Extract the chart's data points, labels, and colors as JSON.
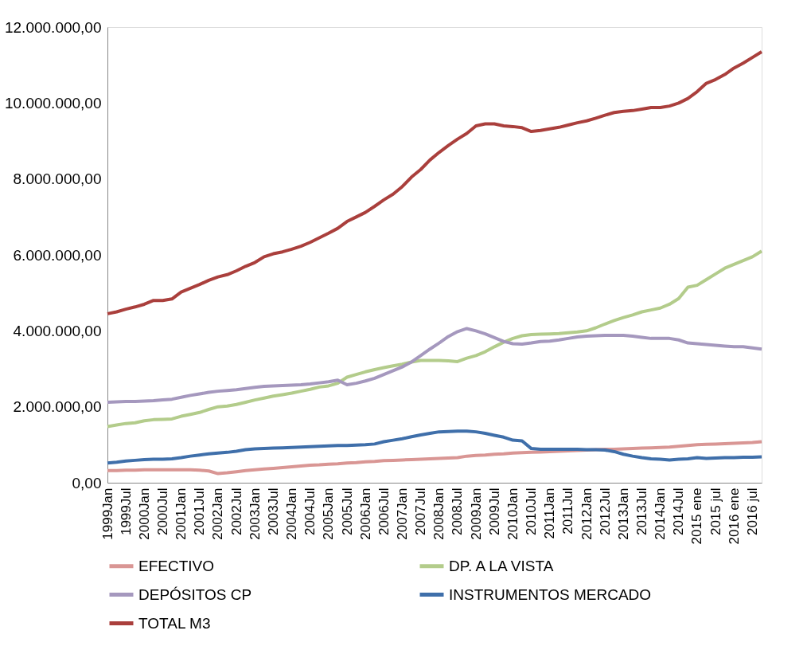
{
  "chart_data": {
    "type": "line",
    "categories": [
      "1999Jan",
      null,
      "1999Jul",
      null,
      "2000Jan",
      null,
      "2000Jul",
      null,
      "2001Jan",
      null,
      "2001Jul",
      null,
      "2002Jan",
      null,
      "2002Jul",
      null,
      "2003Jan",
      null,
      "2003Jul",
      null,
      "2004Jan",
      null,
      "2004Jul",
      null,
      "2005Jan",
      null,
      "2005Jul",
      null,
      "2006Jan",
      null,
      "2006Jul",
      null,
      "2007Jan",
      null,
      "2007Jul",
      null,
      "2008Jan",
      null,
      "2008Jul",
      null,
      "2009Jan",
      null,
      "2009Jul",
      null,
      "2010Jan",
      null,
      "2010Jul",
      null,
      "2011Jan",
      null,
      "2011Jul",
      null,
      "2012Jan",
      null,
      "2012Jul",
      null,
      "2013Jan",
      null,
      "2013Jul",
      null,
      "2014Jan",
      null,
      "2014Jul",
      null,
      "2015 ene",
      null,
      "2015 jul",
      null,
      "2016 ene",
      null,
      "2016 jul",
      null
    ],
    "series": [
      {
        "name": "EFECTIVO",
        "color": "#d99694",
        "values": [
          320000,
          320000,
          330000,
          330000,
          340000,
          340000,
          340000,
          340000,
          340000,
          340000,
          330000,
          310000,
          240000,
          260000,
          290000,
          320000,
          340000,
          360000,
          380000,
          400000,
          420000,
          440000,
          460000,
          470000,
          490000,
          500000,
          520000,
          530000,
          550000,
          560000,
          580000,
          590000,
          600000,
          610000,
          620000,
          630000,
          640000,
          650000,
          660000,
          700000,
          720000,
          730000,
          750000,
          760000,
          780000,
          790000,
          800000,
          810000,
          820000,
          830000,
          840000,
          850000,
          860000,
          870000,
          880000,
          880000,
          890000,
          900000,
          910000,
          920000,
          930000,
          940000,
          960000,
          980000,
          1000000,
          1010000,
          1020000,
          1030000,
          1040000,
          1050000,
          1060000,
          1080000
        ]
      },
      {
        "name": "DP. A LA VISTA",
        "color": "#b3cc8b",
        "values": [
          1480000,
          1520000,
          1560000,
          1580000,
          1630000,
          1660000,
          1670000,
          1680000,
          1750000,
          1800000,
          1850000,
          1930000,
          2000000,
          2020000,
          2060000,
          2120000,
          2180000,
          2230000,
          2280000,
          2320000,
          2360000,
          2410000,
          2460000,
          2520000,
          2550000,
          2620000,
          2780000,
          2850000,
          2920000,
          2980000,
          3030000,
          3080000,
          3120000,
          3180000,
          3220000,
          3220000,
          3220000,
          3210000,
          3190000,
          3280000,
          3350000,
          3450000,
          3580000,
          3700000,
          3800000,
          3870000,
          3900000,
          3910000,
          3920000,
          3930000,
          3950000,
          3970000,
          4000000,
          4080000,
          4180000,
          4270000,
          4350000,
          4420000,
          4500000,
          4550000,
          4600000,
          4700000,
          4850000,
          5150000,
          5200000,
          5350000,
          5500000,
          5650000,
          5750000,
          5850000,
          5950000,
          6100000
        ]
      },
      {
        "name": "DEPÓSITOS CP",
        "color": "#a598be",
        "values": [
          2120000,
          2130000,
          2140000,
          2140000,
          2150000,
          2160000,
          2180000,
          2200000,
          2250000,
          2300000,
          2340000,
          2380000,
          2410000,
          2430000,
          2450000,
          2480000,
          2510000,
          2540000,
          2550000,
          2560000,
          2570000,
          2580000,
          2600000,
          2630000,
          2660000,
          2700000,
          2580000,
          2620000,
          2680000,
          2750000,
          2850000,
          2950000,
          3050000,
          3180000,
          3350000,
          3520000,
          3680000,
          3850000,
          3980000,
          4060000,
          4000000,
          3920000,
          3820000,
          3720000,
          3660000,
          3650000,
          3680000,
          3720000,
          3730000,
          3760000,
          3800000,
          3840000,
          3860000,
          3870000,
          3880000,
          3880000,
          3880000,
          3860000,
          3830000,
          3800000,
          3800000,
          3800000,
          3760000,
          3680000,
          3660000,
          3640000,
          3620000,
          3600000,
          3580000,
          3580000,
          3550000,
          3520000
        ]
      },
      {
        "name": "INSTRUMENTOS MERCADO",
        "color": "#3f6faa",
        "values": [
          520000,
          540000,
          570000,
          590000,
          610000,
          620000,
          620000,
          630000,
          660000,
          700000,
          730000,
          760000,
          780000,
          800000,
          830000,
          870000,
          890000,
          900000,
          910000,
          920000,
          930000,
          940000,
          950000,
          960000,
          970000,
          980000,
          980000,
          990000,
          1000000,
          1020000,
          1080000,
          1120000,
          1160000,
          1210000,
          1260000,
          1300000,
          1340000,
          1350000,
          1360000,
          1360000,
          1340000,
          1300000,
          1250000,
          1200000,
          1120000,
          1100000,
          900000,
          880000,
          880000,
          880000,
          880000,
          880000,
          870000,
          870000,
          860000,
          820000,
          750000,
          700000,
          660000,
          630000,
          620000,
          600000,
          620000,
          630000,
          660000,
          640000,
          650000,
          660000,
          660000,
          670000,
          670000,
          680000
        ]
      },
      {
        "name": "TOTAL M3",
        "color": "#aa3f3c",
        "values": [
          4450000,
          4500000,
          4570000,
          4630000,
          4700000,
          4800000,
          4800000,
          4840000,
          5020000,
          5120000,
          5220000,
          5330000,
          5420000,
          5480000,
          5580000,
          5700000,
          5800000,
          5950000,
          6030000,
          6080000,
          6150000,
          6230000,
          6330000,
          6450000,
          6570000,
          6700000,
          6880000,
          7000000,
          7120000,
          7280000,
          7450000,
          7600000,
          7800000,
          8050000,
          8250000,
          8500000,
          8700000,
          8880000,
          9050000,
          9200000,
          9400000,
          9450000,
          9450000,
          9400000,
          9380000,
          9350000,
          9250000,
          9280000,
          9320000,
          9360000,
          9420000,
          9480000,
          9530000,
          9600000,
          9680000,
          9750000,
          9780000,
          9800000,
          9840000,
          9880000,
          9880000,
          9920000,
          10000000,
          10120000,
          10300000,
          10520000,
          10620000,
          10750000,
          10920000,
          11050000,
          11200000,
          11350000
        ]
      }
    ],
    "ylim": [
      0,
      12000000
    ],
    "yticks": [
      {
        "value": 0,
        "label": "0,00"
      },
      {
        "value": 2000000,
        "label": "2.000.000,00"
      },
      {
        "value": 4000000,
        "label": "4.000.000,00"
      },
      {
        "value": 6000000,
        "label": "6.000.000,00"
      },
      {
        "value": 8000000,
        "label": "8.000.000,00"
      },
      {
        "value": 10000000,
        "label": "10.000.000,00"
      },
      {
        "value": 12000000,
        "label": "12.000.000,00"
      }
    ],
    "grid": false,
    "legend": "bottom",
    "marker": "none",
    "line_style": "solid"
  }
}
